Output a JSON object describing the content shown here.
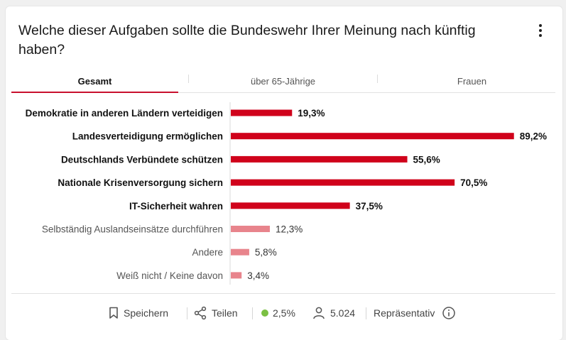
{
  "header": {
    "title": "Welche dieser Aufgaben sollte die Bundeswehr Ihrer Meinung nach künftig haben?",
    "menu_icon": "kebab-menu-icon"
  },
  "tabs": [
    {
      "label": "Gesamt",
      "active": true
    },
    {
      "label": "über 65-Jährige",
      "active": false
    },
    {
      "label": "Frauen",
      "active": false
    }
  ],
  "chart_data": {
    "type": "bar",
    "orientation": "horizontal",
    "categories": [
      "Demokratie in anderen Ländern verteidigen",
      "Landesverteidigung ermöglichen",
      "Deutschlands Verbündete schützen",
      "Nationale Krisenversorgung sichern",
      "IT-Sicherheit wahren",
      "Selbständig Auslandseinsätze durchführen",
      "Andere",
      "Weiß nicht / Keine davon"
    ],
    "values": [
      19.3,
      89.2,
      55.6,
      70.5,
      37.5,
      12.3,
      5.8,
      3.4
    ],
    "value_labels": [
      "19,3%",
      "89,2%",
      "55,6%",
      "70,5%",
      "37,5%",
      "12,3%",
      "5,8%",
      "3,4%"
    ],
    "highlighted": [
      true,
      true,
      true,
      true,
      true,
      false,
      false,
      false
    ],
    "unit": "%",
    "xlim": [
      0,
      100
    ],
    "colors": {
      "highlight": "#d0021b",
      "normal": "#e8848c"
    }
  },
  "footer": {
    "save_label": "Speichern",
    "share_label": "Teilen",
    "error_margin": "2,5%",
    "error_color": "#7bc043",
    "respondents": "5.024",
    "representative_label": "Repräsentativ"
  }
}
